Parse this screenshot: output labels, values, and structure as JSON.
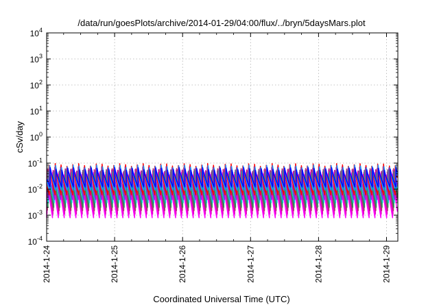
{
  "chart_data": {
    "type": "line",
    "title": "/data/run/goesPlots/archive/2014-01-29/04:00/flux/../bryn/5daysMars.plot",
    "xlabel": "Coordinated Universal Time (UTC)",
    "ylabel": "cSv/day",
    "y_scale": "log",
    "ylim": [
      0.0001,
      10000
    ],
    "xlim": [
      "2014-01-24",
      "2014-01-29 04:00"
    ],
    "grid": true,
    "x_ticks": [
      "2014-1-24",
      "2014-1-25",
      "2014-1-26",
      "2014-1-27",
      "2014-1-28",
      "2014-1-29"
    ],
    "y_ticks": [
      {
        "value": 0.0001,
        "base": "10",
        "exp": "-4"
      },
      {
        "value": 0.001,
        "base": "10",
        "exp": "-3"
      },
      {
        "value": 0.01,
        "base": "10",
        "exp": "-2"
      },
      {
        "value": 0.1,
        "base": "10",
        "exp": "-1"
      },
      {
        "value": 1,
        "base": "10",
        "exp": "0"
      },
      {
        "value": 10,
        "base": "10",
        "exp": "1"
      },
      {
        "value": 100,
        "base": "10",
        "exp": "2"
      },
      {
        "value": 1000,
        "base": "10",
        "exp": "3"
      },
      {
        "value": 10000,
        "base": "10",
        "exp": "4"
      }
    ],
    "period_hours": 2.07,
    "series": [
      {
        "color": "#ff00ff",
        "peak": 0.04,
        "trough": 0.0008,
        "phase_hours": 0.0
      },
      {
        "color": "#e600c8",
        "peak": 0.05,
        "trough": 0.0011,
        "phase_hours": 0.15
      },
      {
        "color": "#b03070",
        "peak": 0.055,
        "trough": 0.0015,
        "phase_hours": 0.3
      },
      {
        "color": "#2e8b57",
        "peak": 0.045,
        "trough": 0.002,
        "phase_hours": 0.45
      },
      {
        "color": "#00c8c8",
        "peak": 0.05,
        "trough": 0.003,
        "phase_hours": 0.6
      },
      {
        "color": "#8a2be2",
        "peak": 0.065,
        "trough": 0.004,
        "phase_hours": 0.75
      },
      {
        "color": "#ff0000",
        "peak": 0.085,
        "trough": 0.006,
        "phase_hours": 0.9
      },
      {
        "color": "#1e90ff",
        "peak": 0.075,
        "trough": 0.009,
        "phase_hours": 1.05
      },
      {
        "color": "#0000ff",
        "peak": 0.06,
        "trough": 0.012,
        "phase_hours": 1.2
      }
    ]
  }
}
